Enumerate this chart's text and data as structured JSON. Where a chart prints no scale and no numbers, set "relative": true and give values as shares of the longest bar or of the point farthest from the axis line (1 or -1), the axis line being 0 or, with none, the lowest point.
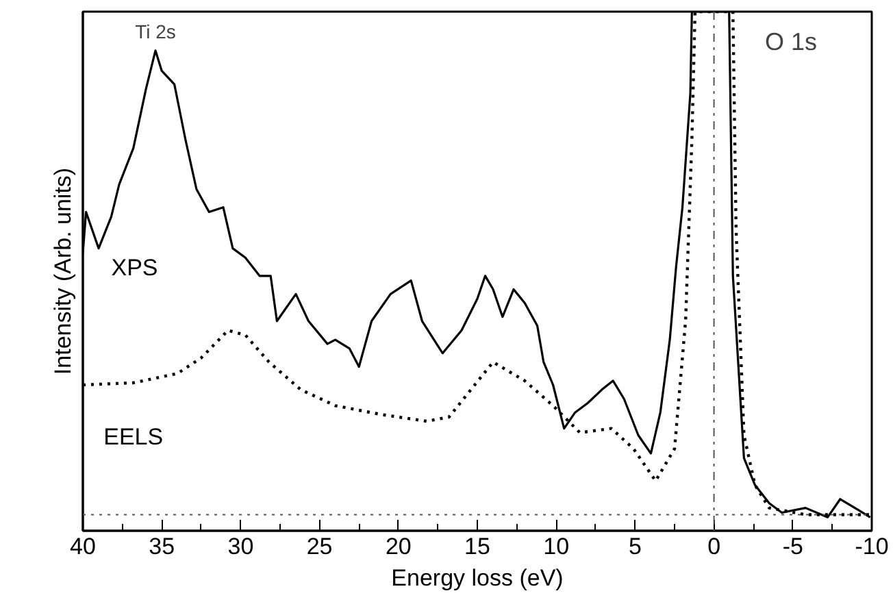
{
  "chart_data": {
    "type": "line",
    "relative": true,
    "xlabel": "Energy loss (eV)",
    "ylabel": "Intensity (Arb. units)",
    "xlim": [
      40,
      -10
    ],
    "xticks": [
      40,
      35,
      30,
      25,
      20,
      15,
      10,
      5,
      0,
      -5,
      -10
    ],
    "grid": false,
    "series": [
      {
        "name": "XPS",
        "color": "#000000",
        "line_style": "solid",
        "x": [
          40.0,
          39.8,
          39.0,
          38.2,
          37.7,
          36.8,
          36.0,
          35.4,
          35.0,
          34.2,
          33.5,
          32.8,
          32.0,
          31.1,
          30.5,
          29.7,
          28.8,
          28.1,
          27.7,
          26.5,
          25.7,
          24.5,
          24.0,
          23.1,
          22.5,
          21.7,
          20.5,
          19.2,
          18.5,
          17.2,
          16.0,
          15.0,
          14.5,
          14.0,
          13.4,
          12.7,
          12.0,
          11.2,
          10.8,
          10.2,
          9.5,
          8.8,
          8.0,
          7.1,
          6.4,
          5.7,
          4.8,
          4.0,
          3.4,
          2.8,
          2.4,
          2.0,
          1.5,
          1.4,
          -0.96,
          -1.2,
          -1.9,
          -2.6,
          -3.5,
          -4.3,
          -5.8,
          -7.2,
          -8.0,
          -9.2,
          -9.9
        ],
        "values": [
          0.535,
          0.614,
          0.544,
          0.605,
          0.667,
          0.737,
          0.851,
          0.925,
          0.886,
          0.86,
          0.754,
          0.658,
          0.614,
          0.623,
          0.544,
          0.526,
          0.491,
          0.491,
          0.404,
          0.456,
          0.404,
          0.36,
          0.368,
          0.351,
          0.316,
          0.404,
          0.456,
          0.482,
          0.404,
          0.342,
          0.386,
          0.447,
          0.491,
          0.465,
          0.412,
          0.465,
          0.439,
          0.395,
          0.325,
          0.281,
          0.197,
          0.228,
          0.246,
          0.272,
          0.289,
          0.254,
          0.184,
          0.149,
          0.228,
          0.368,
          0.509,
          0.623,
          0.842,
          1.0,
          1.0,
          0.491,
          0.14,
          0.088,
          0.053,
          0.035,
          0.044,
          0.026,
          0.061,
          0.039,
          0.026
        ]
      },
      {
        "name": "EELS",
        "color": "#000000",
        "line_style": "dotted",
        "x": [
          40.0,
          36.8,
          34.0,
          32.5,
          30.8,
          29.7,
          28.2,
          26.2,
          24.0,
          21.1,
          18.2,
          16.8,
          15.4,
          14.0,
          12.0,
          10.2,
          8.5,
          6.5,
          5.1,
          3.7,
          2.5,
          1.8,
          1.4,
          1.2,
          -1.2,
          -1.4,
          -1.9,
          -2.6,
          -3.5,
          -5.8,
          -10.0
        ],
        "values": [
          0.281,
          0.285,
          0.303,
          0.333,
          0.386,
          0.377,
          0.325,
          0.272,
          0.241,
          0.224,
          0.211,
          0.219,
          0.272,
          0.325,
          0.289,
          0.241,
          0.189,
          0.197,
          0.158,
          0.096,
          0.158,
          0.404,
          0.754,
          1.0,
          1.0,
          0.579,
          0.184,
          0.088,
          0.044,
          0.031,
          0.031
        ]
      }
    ],
    "ref_lines": [
      {
        "axis": "x",
        "value": 0,
        "line_style": "dashdot",
        "color": "#555555"
      },
      {
        "axis": "y",
        "value": 0.031,
        "line_style": "dotted",
        "color": "#555555"
      }
    ],
    "annotations": [
      {
        "text": "Ti 2s",
        "x": 35.4,
        "y": 0.93
      },
      "O 1s"
    ]
  }
}
